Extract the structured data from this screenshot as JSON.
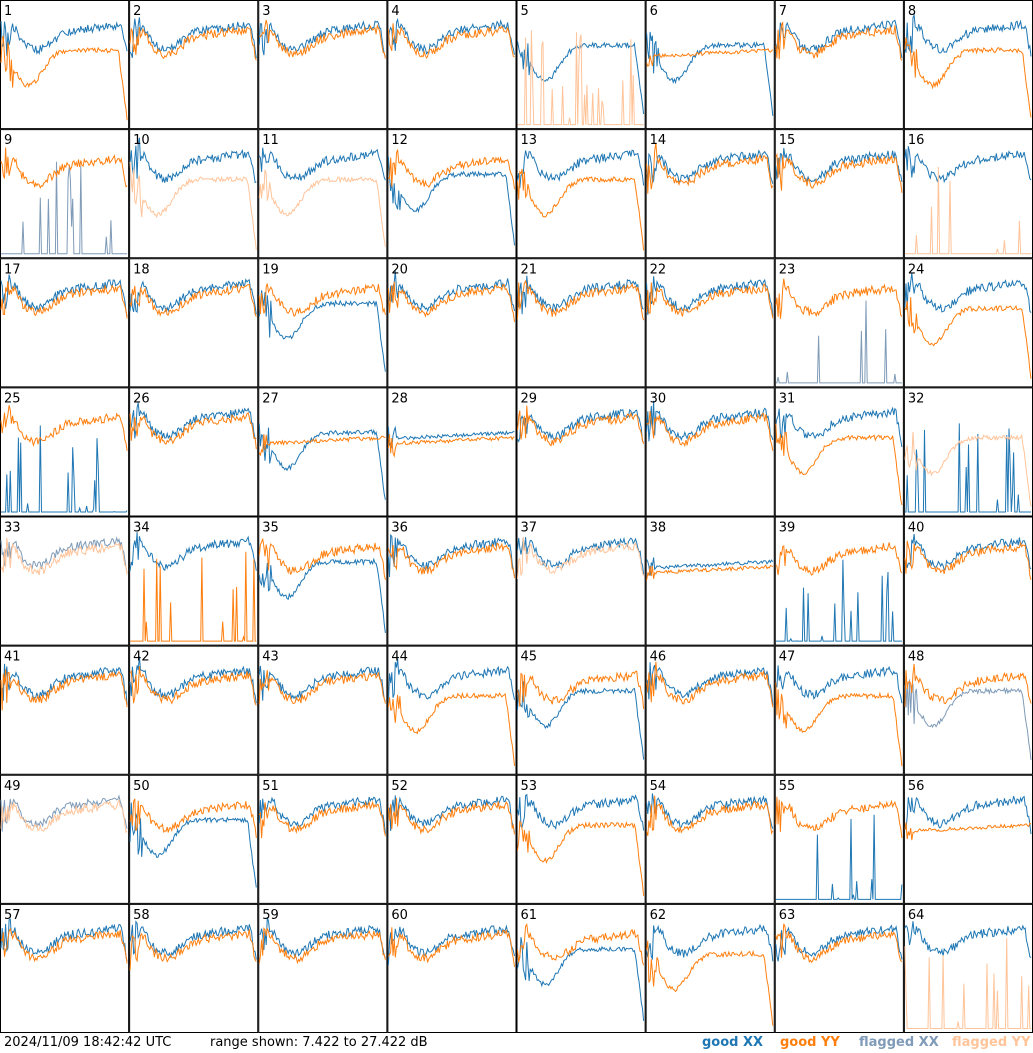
{
  "timestamp": "2024/11/09 18:42:42 UTC",
  "range_text": "range shown: 7.422 to 27.422 dB",
  "legend": {
    "good_xx": "good XX",
    "good_yy": "good YY",
    "flagged_xx": "flagged XX",
    "flagged_yy": "flagged YY"
  },
  "colors": {
    "good_xx": "#1f77b4",
    "good_yy": "#ff7f0e",
    "flagged_xx": "#7f9bb8",
    "flagged_yy": "#ffc49a",
    "grid": "#000000",
    "background": "#ffffff"
  },
  "chart_data": {
    "type": "line",
    "layout": "8x8 small multiples of per-antenna spectra",
    "y_range_db": [
      7.422,
      27.422
    ],
    "panels": [
      {
        "id": 1,
        "xx": "good",
        "yy": "good",
        "xx_shape": "ripple",
        "yy_shape": "dip"
      },
      {
        "id": 2,
        "xx": "good",
        "yy": "good",
        "xx_shape": "ripple",
        "yy_shape": "ripple"
      },
      {
        "id": 3,
        "xx": "good",
        "yy": "good",
        "xx_shape": "ripple",
        "yy_shape": "ripple"
      },
      {
        "id": 4,
        "xx": "good",
        "yy": "good",
        "xx_shape": "ripple",
        "yy_shape": "ripple"
      },
      {
        "id": 5,
        "xx": "good",
        "yy": "flagged",
        "xx_shape": "dip",
        "yy_shape": "spikes"
      },
      {
        "id": 6,
        "xx": "good",
        "yy": "good",
        "xx_shape": "dip",
        "yy_shape": "flat"
      },
      {
        "id": 7,
        "xx": "good",
        "yy": "good",
        "xx_shape": "ripple",
        "yy_shape": "ripple"
      },
      {
        "id": 8,
        "xx": "good",
        "yy": "good",
        "xx_shape": "ripple",
        "yy_shape": "dip"
      },
      {
        "id": 9,
        "xx": "flagged",
        "yy": "good",
        "xx_shape": "spikes",
        "yy_shape": "ripple"
      },
      {
        "id": 10,
        "xx": "good",
        "yy": "flagged",
        "xx_shape": "ripple",
        "yy_shape": "dip"
      },
      {
        "id": 11,
        "xx": "good",
        "yy": "flagged",
        "xx_shape": "ripple",
        "yy_shape": "dip"
      },
      {
        "id": 12,
        "xx": "good",
        "yy": "good",
        "xx_shape": "dip",
        "yy_shape": "ripple"
      },
      {
        "id": 13,
        "xx": "good",
        "yy": "good",
        "xx_shape": "ripple",
        "yy_shape": "dip"
      },
      {
        "id": 14,
        "xx": "good",
        "yy": "good",
        "xx_shape": "ripple",
        "yy_shape": "ripple"
      },
      {
        "id": 15,
        "xx": "good",
        "yy": "good",
        "xx_shape": "ripple",
        "yy_shape": "ripple"
      },
      {
        "id": 16,
        "xx": "good",
        "yy": "flagged",
        "xx_shape": "ripple",
        "yy_shape": "spikes"
      },
      {
        "id": 17,
        "xx": "good",
        "yy": "good",
        "xx_shape": "ripple",
        "yy_shape": "ripple"
      },
      {
        "id": 18,
        "xx": "good",
        "yy": "good",
        "xx_shape": "ripple",
        "yy_shape": "ripple"
      },
      {
        "id": 19,
        "xx": "good",
        "yy": "good",
        "xx_shape": "dip",
        "yy_shape": "ripple"
      },
      {
        "id": 20,
        "xx": "good",
        "yy": "good",
        "xx_shape": "ripple",
        "yy_shape": "ripple"
      },
      {
        "id": 21,
        "xx": "good",
        "yy": "good",
        "xx_shape": "ripple",
        "yy_shape": "ripple"
      },
      {
        "id": 22,
        "xx": "good",
        "yy": "good",
        "xx_shape": "ripple",
        "yy_shape": "ripple"
      },
      {
        "id": 23,
        "xx": "flagged",
        "yy": "good",
        "xx_shape": "spikes",
        "yy_shape": "ripple"
      },
      {
        "id": 24,
        "xx": "good",
        "yy": "good",
        "xx_shape": "ripple",
        "yy_shape": "dip"
      },
      {
        "id": 25,
        "xx": "good",
        "yy": "good",
        "xx_shape": "spikes",
        "yy_shape": "ripple"
      },
      {
        "id": 26,
        "xx": "good",
        "yy": "good",
        "xx_shape": "ripple",
        "yy_shape": "ripple"
      },
      {
        "id": 27,
        "xx": "good",
        "yy": "good",
        "xx_shape": "dip",
        "yy_shape": "flat"
      },
      {
        "id": 28,
        "xx": "good",
        "yy": "good",
        "xx_shape": "flat",
        "yy_shape": "flat"
      },
      {
        "id": 29,
        "xx": "good",
        "yy": "good",
        "xx_shape": "ripple",
        "yy_shape": "ripple"
      },
      {
        "id": 30,
        "xx": "good",
        "yy": "good",
        "xx_shape": "ripple",
        "yy_shape": "ripple"
      },
      {
        "id": 31,
        "xx": "good",
        "yy": "good",
        "xx_shape": "ripple",
        "yy_shape": "dip"
      },
      {
        "id": 32,
        "xx": "good",
        "yy": "flagged",
        "xx_shape": "spikes",
        "yy_shape": "dip"
      },
      {
        "id": 33,
        "xx": "flagged",
        "yy": "flagged",
        "xx_shape": "ripple",
        "yy_shape": "ripple"
      },
      {
        "id": 34,
        "xx": "good",
        "yy": "good",
        "xx_shape": "ripple",
        "yy_shape": "spikes"
      },
      {
        "id": 35,
        "xx": "good",
        "yy": "good",
        "xx_shape": "dip",
        "yy_shape": "ripple"
      },
      {
        "id": 36,
        "xx": "good",
        "yy": "good",
        "xx_shape": "ripple",
        "yy_shape": "ripple"
      },
      {
        "id": 37,
        "xx": "good",
        "yy": "flagged",
        "xx_shape": "ripple",
        "yy_shape": "ripple"
      },
      {
        "id": 38,
        "xx": "good",
        "yy": "good",
        "xx_shape": "flat",
        "yy_shape": "flat"
      },
      {
        "id": 39,
        "xx": "good",
        "yy": "good",
        "xx_shape": "spikes",
        "yy_shape": "ripple"
      },
      {
        "id": 40,
        "xx": "good",
        "yy": "good",
        "xx_shape": "ripple",
        "yy_shape": "ripple"
      },
      {
        "id": 41,
        "xx": "good",
        "yy": "good",
        "xx_shape": "ripple",
        "yy_shape": "ripple"
      },
      {
        "id": 42,
        "xx": "good",
        "yy": "good",
        "xx_shape": "ripple",
        "yy_shape": "ripple"
      },
      {
        "id": 43,
        "xx": "good",
        "yy": "good",
        "xx_shape": "ripple",
        "yy_shape": "ripple"
      },
      {
        "id": 44,
        "xx": "good",
        "yy": "good",
        "xx_shape": "ripple",
        "yy_shape": "dip"
      },
      {
        "id": 45,
        "xx": "good",
        "yy": "good",
        "xx_shape": "dip",
        "yy_shape": "ripple"
      },
      {
        "id": 46,
        "xx": "good",
        "yy": "good",
        "xx_shape": "ripple",
        "yy_shape": "ripple"
      },
      {
        "id": 47,
        "xx": "good",
        "yy": "good",
        "xx_shape": "ripple",
        "yy_shape": "dip"
      },
      {
        "id": 48,
        "xx": "flagged",
        "yy": "good",
        "xx_shape": "dip",
        "yy_shape": "ripple"
      },
      {
        "id": 49,
        "xx": "flagged",
        "yy": "flagged",
        "xx_shape": "ripple",
        "yy_shape": "ripple"
      },
      {
        "id": 50,
        "xx": "good",
        "yy": "good",
        "xx_shape": "dip",
        "yy_shape": "ripple"
      },
      {
        "id": 51,
        "xx": "good",
        "yy": "good",
        "xx_shape": "ripple",
        "yy_shape": "ripple"
      },
      {
        "id": 52,
        "xx": "good",
        "yy": "good",
        "xx_shape": "ripple",
        "yy_shape": "ripple"
      },
      {
        "id": 53,
        "xx": "good",
        "yy": "good",
        "xx_shape": "ripple",
        "yy_shape": "dip"
      },
      {
        "id": 54,
        "xx": "good",
        "yy": "good",
        "xx_shape": "ripple",
        "yy_shape": "ripple"
      },
      {
        "id": 55,
        "xx": "good",
        "yy": "good",
        "xx_shape": "spikes",
        "yy_shape": "ripple"
      },
      {
        "id": 56,
        "xx": "good",
        "yy": "good",
        "xx_shape": "ripple",
        "yy_shape": "flat"
      },
      {
        "id": 57,
        "xx": "good",
        "yy": "good",
        "xx_shape": "ripple",
        "yy_shape": "ripple"
      },
      {
        "id": 58,
        "xx": "good",
        "yy": "good",
        "xx_shape": "ripple",
        "yy_shape": "ripple"
      },
      {
        "id": 59,
        "xx": "good",
        "yy": "good",
        "xx_shape": "ripple",
        "yy_shape": "ripple"
      },
      {
        "id": 60,
        "xx": "good",
        "yy": "good",
        "xx_shape": "ripple",
        "yy_shape": "ripple"
      },
      {
        "id": 61,
        "xx": "good",
        "yy": "good",
        "xx_shape": "dip",
        "yy_shape": "ripple"
      },
      {
        "id": 62,
        "xx": "good",
        "yy": "good",
        "xx_shape": "ripple",
        "yy_shape": "dip"
      },
      {
        "id": 63,
        "xx": "good",
        "yy": "good",
        "xx_shape": "ripple",
        "yy_shape": "ripple"
      },
      {
        "id": 64,
        "xx": "good",
        "yy": "flagged",
        "xx_shape": "ripple",
        "yy_shape": "spikes"
      }
    ]
  }
}
